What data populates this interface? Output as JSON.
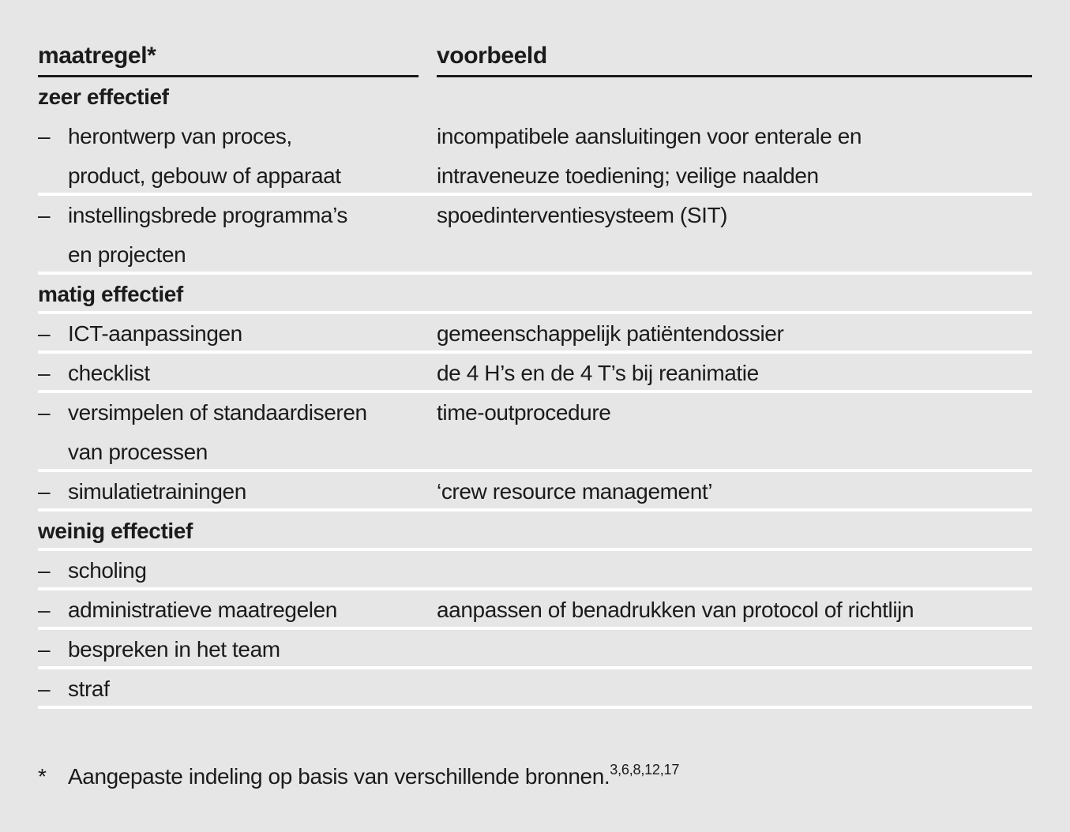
{
  "colors": {
    "background": "#e6e6e6",
    "text": "#1b1b1b",
    "header_rule": "#1a1a1a",
    "row_separator": "#ffffff"
  },
  "table": {
    "bullet": "–",
    "columns": [
      {
        "label": "maatregel*"
      },
      {
        "label": "voorbeeld"
      }
    ],
    "separator_after_last": true,
    "rows": [
      {
        "type": "section",
        "label": "zeer effectief",
        "separator_before": false
      },
      {
        "type": "item",
        "measure_lines": [
          "herontwerp van proces,",
          "product, gebouw of apparaat"
        ],
        "example_lines": [
          "incompatibele aansluitingen voor enterale en",
          "intraveneuze toediening; veilige naalden"
        ],
        "separator_before": false
      },
      {
        "type": "item",
        "measure_lines": [
          "instellingsbrede programma’s",
          "en projecten"
        ],
        "example_lines": [
          "spoedinterventiesysteem (SIT)"
        ],
        "separator_before": true
      },
      {
        "type": "section",
        "label": "matig effectief",
        "separator_before": true
      },
      {
        "type": "item",
        "measure_lines": [
          "ICT-aanpassingen"
        ],
        "example_lines": [
          "gemeenschappelijk patiëntendossier"
        ],
        "separator_before": true
      },
      {
        "type": "item",
        "measure_lines": [
          "checklist"
        ],
        "example_lines": [
          "de 4 H’s en de 4 T’s bij reanimatie"
        ],
        "separator_before": true
      },
      {
        "type": "item",
        "measure_lines": [
          "versimpelen of standaardiseren",
          "van processen"
        ],
        "example_lines": [
          "time-outprocedure"
        ],
        "separator_before": true
      },
      {
        "type": "item",
        "measure_lines": [
          "simulatietrainingen"
        ],
        "example_lines": [
          "‘crew resource management’"
        ],
        "separator_before": true
      },
      {
        "type": "section",
        "label": "weinig effectief",
        "separator_before": true
      },
      {
        "type": "item",
        "measure_lines": [
          "scholing"
        ],
        "example_lines": [],
        "separator_before": true
      },
      {
        "type": "item",
        "measure_lines": [
          "administratieve maatregelen"
        ],
        "example_lines": [
          "aanpassen of benadrukken van protocol of richtlijn"
        ],
        "separator_before": true
      },
      {
        "type": "item",
        "measure_lines": [
          "bespreken in het team"
        ],
        "example_lines": [],
        "separator_before": true
      },
      {
        "type": "item",
        "measure_lines": [
          "straf"
        ],
        "example_lines": [],
        "separator_before": true
      }
    ]
  },
  "footnote": {
    "marker": "*",
    "text": "Aangepaste indeling op basis van verschillende bronnen.",
    "references": "3,6,8,12,17"
  }
}
